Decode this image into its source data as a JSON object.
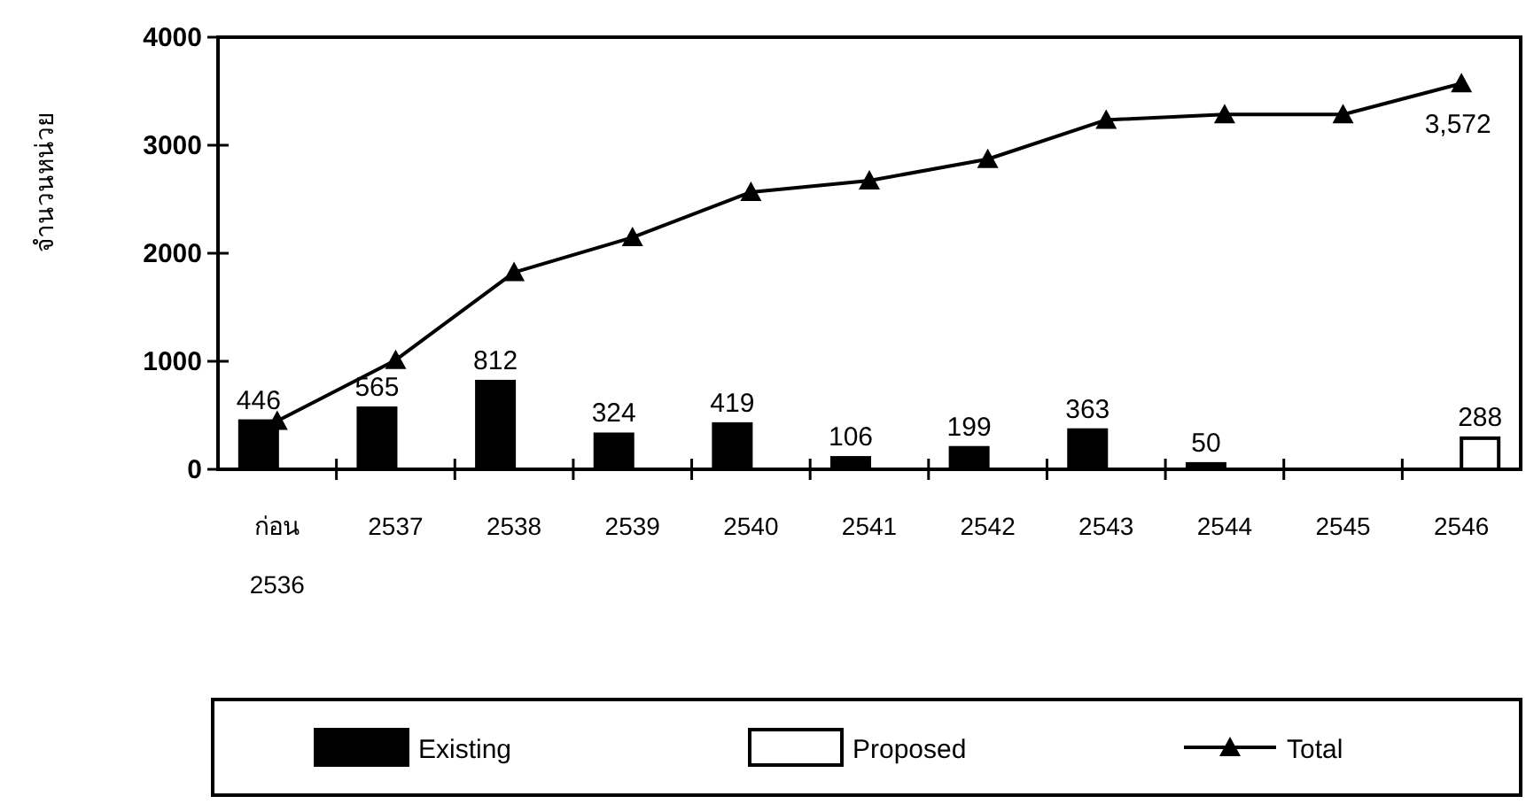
{
  "chart_data": {
    "type": "bar",
    "ylabel": "จำนวนหน่วย",
    "categories": [
      "ก่อน 2536",
      "2537",
      "2538",
      "2539",
      "2540",
      "2541",
      "2542",
      "2543",
      "2544",
      "2545",
      "2546"
    ],
    "series": [
      {
        "name": "Existing",
        "color": "#000000",
        "values": [
          446,
          565,
          812,
          324,
          419,
          106,
          199,
          363,
          50,
          null,
          null
        ],
        "value_labels": [
          "446",
          "565",
          "812",
          "324",
          "419",
          "106",
          "199",
          "363",
          "50",
          null,
          null
        ]
      },
      {
        "name": "Proposed",
        "color": "#ffffff",
        "values": [
          null,
          null,
          null,
          null,
          null,
          null,
          null,
          null,
          null,
          null,
          288
        ],
        "value_labels": [
          null,
          null,
          null,
          null,
          null,
          null,
          null,
          null,
          null,
          null,
          "288"
        ]
      },
      {
        "name": "Total",
        "type": "line",
        "color": "#000000",
        "marker": "triangle",
        "values": [
          446,
          1011,
          1823,
          2147,
          2566,
          2672,
          2871,
          3234,
          3284,
          3284,
          3572
        ],
        "value_labels": [
          null,
          null,
          null,
          null,
          null,
          null,
          null,
          null,
          null,
          null,
          "3,572"
        ]
      }
    ],
    "ylim": [
      0,
      4000
    ],
    "yticks": [
      0,
      1000,
      2000,
      3000,
      4000
    ],
    "grid": false,
    "legend": "bottom"
  }
}
